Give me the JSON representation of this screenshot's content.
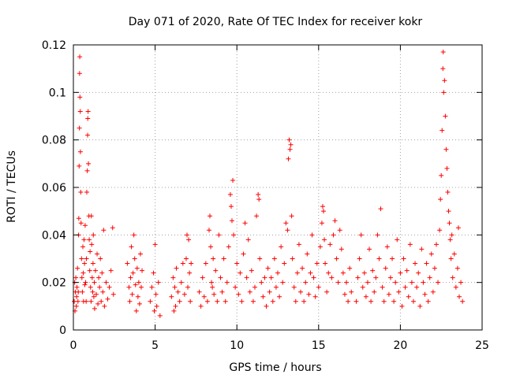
{
  "chart_data": {
    "type": "scatter",
    "title": "Day 071 of 2020, Rate Of TEC Index for receiver kokr",
    "xlabel": "GPS time / hours",
    "ylabel": "ROTI / TECUs",
    "xlim": [
      0,
      25
    ],
    "ylim": [
      0,
      0.12
    ],
    "xticks": [
      0,
      5,
      10,
      15,
      20,
      25
    ],
    "xtick_labels": [
      "0",
      "5",
      "10",
      "15",
      "20",
      "25"
    ],
    "yticks": [
      0,
      0.02,
      0.04,
      0.06,
      0.08,
      0.1,
      0.12
    ],
    "ytick_labels": [
      "0",
      "0.02",
      "0.04",
      "0.06",
      "0.08",
      "0.1",
      "0.12"
    ],
    "grid": true,
    "marker": "+",
    "color": "#ff0000",
    "series": [
      {
        "name": "ROTI",
        "points": [
          [
            0.05,
            0.012
          ],
          [
            0.08,
            0.02
          ],
          [
            0.1,
            0.008
          ],
          [
            0.12,
            0.016
          ],
          [
            0.15,
            0.022
          ],
          [
            0.18,
            0.01
          ],
          [
            0.2,
            0.014
          ],
          [
            0.22,
            0.018
          ],
          [
            0.25,
            0.026
          ],
          [
            0.28,
            0.012
          ],
          [
            0.3,
            0.016
          ],
          [
            0.32,
            0.04
          ],
          [
            0.33,
            0.047
          ],
          [
            0.35,
            0.069
          ],
          [
            0.37,
            0.085
          ],
          [
            0.38,
            0.108
          ],
          [
            0.39,
            0.115
          ],
          [
            0.4,
            0.098
          ],
          [
            0.42,
            0.092
          ],
          [
            0.43,
            0.075
          ],
          [
            0.45,
            0.058
          ],
          [
            0.47,
            0.045
          ],
          [
            0.5,
            0.03
          ],
          [
            0.52,
            0.022
          ],
          [
            0.55,
            0.016
          ],
          [
            0.58,
            0.035
          ],
          [
            0.6,
            0.024
          ],
          [
            0.62,
            0.012
          ],
          [
            0.65,
            0.038
          ],
          [
            0.68,
            0.028
          ],
          [
            0.7,
            0.019
          ],
          [
            0.72,
            0.044
          ],
          [
            0.75,
            0.02
          ],
          [
            0.78,
            0.012
          ],
          [
            0.8,
            0.03
          ],
          [
            0.82,
            0.058
          ],
          [
            0.85,
            0.067
          ],
          [
            0.87,
            0.082
          ],
          [
            0.88,
            0.089
          ],
          [
            0.9,
            0.092
          ],
          [
            0.92,
            0.07
          ],
          [
            0.95,
            0.048
          ],
          [
            0.97,
            0.038
          ],
          [
            1.0,
            0.025
          ],
          [
            1.02,
            0.033
          ],
          [
            1.05,
            0.018
          ],
          [
            1.08,
            0.012
          ],
          [
            1.1,
            0.048
          ],
          [
            1.12,
            0.036
          ],
          [
            1.15,
            0.022
          ],
          [
            1.18,
            0.016
          ],
          [
            1.2,
            0.028
          ],
          [
            1.22,
            0.04
          ],
          [
            1.25,
            0.014
          ],
          [
            1.28,
            0.02
          ],
          [
            1.3,
            0.009
          ],
          [
            1.35,
            0.025
          ],
          [
            1.4,
            0.015
          ],
          [
            1.45,
            0.032
          ],
          [
            1.5,
            0.011
          ],
          [
            1.55,
            0.022
          ],
          [
            1.6,
            0.018
          ],
          [
            1.65,
            0.03
          ],
          [
            1.7,
            0.012
          ],
          [
            1.75,
            0.024
          ],
          [
            1.8,
            0.016
          ],
          [
            1.85,
            0.042
          ],
          [
            1.9,
            0.01
          ],
          [
            2.0,
            0.02
          ],
          [
            2.1,
            0.013
          ],
          [
            2.2,
            0.018
          ],
          [
            2.3,
            0.025
          ],
          [
            2.4,
            0.043
          ],
          [
            2.45,
            0.015
          ],
          [
            3.3,
            0.028
          ],
          [
            3.4,
            0.018
          ],
          [
            3.45,
            0.012
          ],
          [
            3.5,
            0.022
          ],
          [
            3.55,
            0.035
          ],
          [
            3.6,
            0.015
          ],
          [
            3.65,
            0.024
          ],
          [
            3.7,
            0.04
          ],
          [
            3.75,
            0.03
          ],
          [
            3.8,
            0.019
          ],
          [
            3.85,
            0.008
          ],
          [
            3.9,
            0.026
          ],
          [
            3.95,
            0.014
          ],
          [
            4.0,
            0.02
          ],
          [
            4.05,
            0.011
          ],
          [
            4.1,
            0.032
          ],
          [
            4.15,
            0.018
          ],
          [
            4.2,
            0.025
          ],
          [
            4.7,
            0.012
          ],
          [
            4.8,
            0.018
          ],
          [
            4.9,
            0.024
          ],
          [
            4.95,
            0.008
          ],
          [
            5.0,
            0.036
          ],
          [
            5.05,
            0.015
          ],
          [
            5.1,
            0.01
          ],
          [
            5.2,
            0.02
          ],
          [
            5.3,
            0.006
          ],
          [
            6.0,
            0.014
          ],
          [
            6.1,
            0.022
          ],
          [
            6.15,
            0.008
          ],
          [
            6.2,
            0.018
          ],
          [
            6.25,
            0.01
          ],
          [
            6.3,
            0.026
          ],
          [
            6.4,
            0.016
          ],
          [
            6.5,
            0.012
          ],
          [
            6.6,
            0.02
          ],
          [
            6.7,
            0.028
          ],
          [
            6.8,
            0.015
          ],
          [
            6.9,
            0.03
          ],
          [
            6.95,
            0.04
          ],
          [
            7.0,
            0.018
          ],
          [
            7.05,
            0.038
          ],
          [
            7.1,
            0.024
          ],
          [
            7.15,
            0.012
          ],
          [
            7.2,
            0.028
          ],
          [
            7.7,
            0.016
          ],
          [
            7.8,
            0.01
          ],
          [
            7.9,
            0.022
          ],
          [
            8.0,
            0.014
          ],
          [
            8.1,
            0.028
          ],
          [
            8.2,
            0.012
          ],
          [
            8.3,
            0.042
          ],
          [
            8.35,
            0.048
          ],
          [
            8.4,
            0.035
          ],
          [
            8.45,
            0.02
          ],
          [
            8.5,
            0.018
          ],
          [
            8.55,
            0.03
          ],
          [
            8.6,
            0.015
          ],
          [
            8.7,
            0.025
          ],
          [
            8.8,
            0.012
          ],
          [
            8.9,
            0.04
          ],
          [
            9.0,
            0.022
          ],
          [
            9.1,
            0.016
          ],
          [
            9.2,
            0.03
          ],
          [
            9.3,
            0.012
          ],
          [
            9.4,
            0.02
          ],
          [
            9.5,
            0.035
          ],
          [
            9.6,
            0.057
          ],
          [
            9.65,
            0.052
          ],
          [
            9.7,
            0.046
          ],
          [
            9.75,
            0.063
          ],
          [
            9.8,
            0.04
          ],
          [
            9.9,
            0.018
          ],
          [
            10.0,
            0.028
          ],
          [
            10.1,
            0.015
          ],
          [
            10.2,
            0.024
          ],
          [
            10.3,
            0.012
          ],
          [
            10.4,
            0.032
          ],
          [
            10.5,
            0.045
          ],
          [
            10.6,
            0.022
          ],
          [
            10.7,
            0.038
          ],
          [
            10.8,
            0.016
          ],
          [
            10.9,
            0.025
          ],
          [
            11.0,
            0.012
          ],
          [
            11.1,
            0.018
          ],
          [
            11.2,
            0.048
          ],
          [
            11.3,
            0.057
          ],
          [
            11.35,
            0.055
          ],
          [
            11.4,
            0.03
          ],
          [
            11.5,
            0.02
          ],
          [
            11.6,
            0.014
          ],
          [
            11.7,
            0.022
          ],
          [
            11.8,
            0.01
          ],
          [
            11.9,
            0.026
          ],
          [
            12.0,
            0.016
          ],
          [
            12.1,
            0.022
          ],
          [
            12.2,
            0.012
          ],
          [
            12.3,
            0.03
          ],
          [
            12.4,
            0.018
          ],
          [
            12.5,
            0.024
          ],
          [
            12.6,
            0.014
          ],
          [
            12.7,
            0.035
          ],
          [
            12.8,
            0.02
          ],
          [
            12.9,
            0.028
          ],
          [
            13.0,
            0.045
          ],
          [
            13.1,
            0.042
          ],
          [
            13.15,
            0.072
          ],
          [
            13.2,
            0.08
          ],
          [
            13.25,
            0.076
          ],
          [
            13.3,
            0.078
          ],
          [
            13.35,
            0.048
          ],
          [
            13.4,
            0.03
          ],
          [
            13.5,
            0.018
          ],
          [
            13.6,
            0.012
          ],
          [
            13.7,
            0.024
          ],
          [
            13.8,
            0.036
          ],
          [
            13.9,
            0.016
          ],
          [
            14.0,
            0.026
          ],
          [
            14.1,
            0.012
          ],
          [
            14.2,
            0.02
          ],
          [
            14.3,
            0.032
          ],
          [
            14.4,
            0.015
          ],
          [
            14.5,
            0.024
          ],
          [
            14.6,
            0.04
          ],
          [
            14.7,
            0.022
          ],
          [
            14.8,
            0.014
          ],
          [
            14.9,
            0.028
          ],
          [
            15.0,
            0.018
          ],
          [
            15.1,
            0.035
          ],
          [
            15.2,
            0.045
          ],
          [
            15.25,
            0.052
          ],
          [
            15.3,
            0.05
          ],
          [
            15.35,
            0.038
          ],
          [
            15.4,
            0.028
          ],
          [
            15.5,
            0.016
          ],
          [
            15.6,
            0.024
          ],
          [
            15.7,
            0.036
          ],
          [
            15.8,
            0.022
          ],
          [
            15.9,
            0.04
          ],
          [
            16.0,
            0.046
          ],
          [
            16.1,
            0.03
          ],
          [
            16.2,
            0.02
          ],
          [
            16.3,
            0.042
          ],
          [
            16.4,
            0.034
          ],
          [
            16.5,
            0.024
          ],
          [
            16.6,
            0.015
          ],
          [
            16.7,
            0.02
          ],
          [
            16.8,
            0.012
          ],
          [
            16.9,
            0.026
          ],
          [
            17.0,
            0.016
          ],
          [
            17.3,
            0.012
          ],
          [
            17.4,
            0.022
          ],
          [
            17.5,
            0.03
          ],
          [
            17.6,
            0.04
          ],
          [
            17.7,
            0.018
          ],
          [
            17.8,
            0.024
          ],
          [
            17.9,
            0.014
          ],
          [
            18.0,
            0.02
          ],
          [
            18.1,
            0.034
          ],
          [
            18.2,
            0.012
          ],
          [
            18.3,
            0.025
          ],
          [
            18.4,
            0.016
          ],
          [
            18.5,
            0.022
          ],
          [
            18.6,
            0.04
          ],
          [
            18.7,
            0.03
          ],
          [
            18.8,
            0.051
          ],
          [
            18.9,
            0.018
          ],
          [
            19.0,
            0.012
          ],
          [
            19.1,
            0.026
          ],
          [
            19.2,
            0.035
          ],
          [
            19.3,
            0.015
          ],
          [
            19.4,
            0.022
          ],
          [
            19.5,
            0.03
          ],
          [
            19.6,
            0.012
          ],
          [
            19.7,
            0.02
          ],
          [
            19.8,
            0.038
          ],
          [
            19.9,
            0.016
          ],
          [
            20.0,
            0.024
          ],
          [
            20.1,
            0.01
          ],
          [
            20.2,
            0.03
          ],
          [
            20.3,
            0.018
          ],
          [
            20.4,
            0.025
          ],
          [
            20.5,
            0.014
          ],
          [
            20.6,
            0.036
          ],
          [
            20.7,
            0.02
          ],
          [
            20.8,
            0.012
          ],
          [
            20.9,
            0.028
          ],
          [
            21.0,
            0.018
          ],
          [
            21.1,
            0.024
          ],
          [
            21.2,
            0.01
          ],
          [
            21.3,
            0.034
          ],
          [
            21.4,
            0.02
          ],
          [
            21.5,
            0.015
          ],
          [
            21.6,
            0.028
          ],
          [
            21.7,
            0.012
          ],
          [
            21.8,
            0.022
          ],
          [
            21.9,
            0.032
          ],
          [
            22.0,
            0.016
          ],
          [
            22.1,
            0.026
          ],
          [
            22.2,
            0.036
          ],
          [
            22.3,
            0.02
          ],
          [
            22.4,
            0.042
          ],
          [
            22.45,
            0.055
          ],
          [
            22.5,
            0.065
          ],
          [
            22.55,
            0.084
          ],
          [
            22.6,
            0.11
          ],
          [
            22.62,
            0.117
          ],
          [
            22.65,
            0.1
          ],
          [
            22.7,
            0.105
          ],
          [
            22.75,
            0.09
          ],
          [
            22.8,
            0.076
          ],
          [
            22.85,
            0.068
          ],
          [
            22.9,
            0.058
          ],
          [
            22.95,
            0.05
          ],
          [
            23.0,
            0.045
          ],
          [
            23.05,
            0.038
          ],
          [
            23.1,
            0.03
          ],
          [
            23.15,
            0.04
          ],
          [
            23.2,
            0.022
          ],
          [
            23.3,
            0.032
          ],
          [
            23.4,
            0.018
          ],
          [
            23.5,
            0.026
          ],
          [
            23.55,
            0.043
          ],
          [
            23.6,
            0.014
          ],
          [
            23.7,
            0.02
          ],
          [
            23.8,
            0.012
          ]
        ]
      }
    ]
  }
}
